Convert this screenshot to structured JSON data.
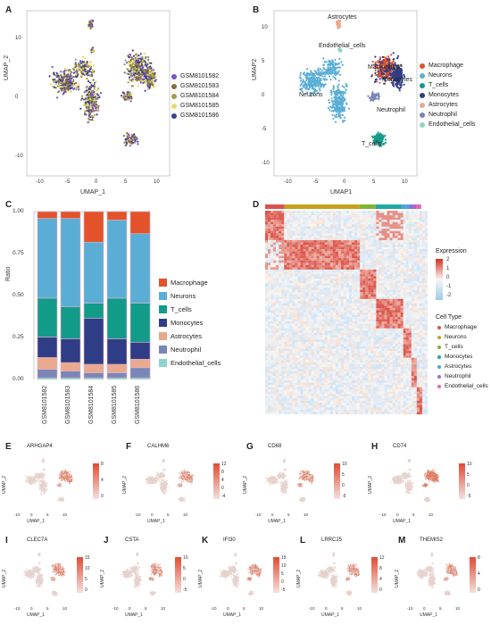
{
  "panels": {
    "A": {
      "letter": "A",
      "xlabel": "UMAP_1",
      "ylabel": "UMAP_2",
      "xticks": [
        "-10",
        "-5",
        "0",
        "5",
        "10"
      ],
      "yticks": [
        "10",
        "0",
        "-10"
      ],
      "legend": [
        {
          "label": "GSM8101582",
          "color": "#7b52c7"
        },
        {
          "label": "GSM8101583",
          "color": "#8a6b3a"
        },
        {
          "label": "GSM8101584",
          "color": "#9aa04a"
        },
        {
          "label": "GSM8101585",
          "color": "#e5dc6a"
        },
        {
          "label": "GSM8101586",
          "color": "#3a3f8f"
        }
      ]
    },
    "B": {
      "letter": "B",
      "xlabel": "UMAP1",
      "ylabel": "UMAP2",
      "xticks": [
        "-10",
        "-5",
        "0",
        "5",
        "10"
      ],
      "yticks": [
        "10",
        "5",
        "0",
        "-5",
        "-10"
      ],
      "labels": [
        "Astrocytes",
        "Endothelial_cells",
        "Macrophage",
        "Monocytes",
        "Neurons",
        "Neutrophil",
        "T_cells"
      ],
      "legend": [
        {
          "label": "Macrophage",
          "color": "#e2532b"
        },
        {
          "label": "Neurons",
          "color": "#5aaed6"
        },
        {
          "label": "T_cells",
          "color": "#139b8a"
        },
        {
          "label": "Monocytes",
          "color": "#2f3d86"
        },
        {
          "label": "Astrocytes",
          "color": "#e8a98d"
        },
        {
          "label": "Neutrophil",
          "color": "#7a86b8"
        },
        {
          "label": "Endothelial_cells",
          "color": "#8fd3c6"
        }
      ]
    },
    "C": {
      "letter": "C",
      "ylabel": "Ratio",
      "yticks": [
        "1.00",
        "0.75",
        "0.50",
        "0.25",
        "0.00"
      ],
      "legend": [
        {
          "label": "Macrophage",
          "color": "#e2532b"
        },
        {
          "label": "Neurons",
          "color": "#5aaed6"
        },
        {
          "label": "T_cells",
          "color": "#139b8a"
        },
        {
          "label": "Monocytes",
          "color": "#2f3d86"
        },
        {
          "label": "Astrocytes",
          "color": "#e8a98d"
        },
        {
          "label": "Neutrophil",
          "color": "#7a86b8"
        },
        {
          "label": "Endothelial_cells",
          "color": "#8fd3c6"
        }
      ]
    },
    "D": {
      "letter": "D",
      "expression_title": "Expression",
      "expression_ticks": [
        "2",
        "1",
        "0",
        "-1",
        "-2"
      ],
      "celltype_title": "Cell Type",
      "celltypes": [
        {
          "label": "Macrophage",
          "color": "#d9534f"
        },
        {
          "label": "Neurons",
          "color": "#c8a21a"
        },
        {
          "label": "T_cells",
          "color": "#7fb52e"
        },
        {
          "label": "Monocytes",
          "color": "#1fa9a2"
        },
        {
          "label": "Astrocytes",
          "color": "#4fa3e0"
        },
        {
          "label": "Neutrophil",
          "color": "#9b6dd6"
        },
        {
          "label": "Endothelial_cells",
          "color": "#e466b6"
        }
      ]
    }
  },
  "chart_data": [
    {
      "type": "bar",
      "title": "",
      "xlabel": "",
      "ylabel": "Ratio",
      "ylim": [
        0,
        1
      ],
      "categories": [
        "GSM8101582",
        "GSM8101583",
        "GSM8101584",
        "GSM8101585",
        "GSM8101586"
      ],
      "series": [
        {
          "name": "Endothelial_cells",
          "color": "#8fd3c6",
          "values": [
            0.02,
            0.02,
            0.02,
            0.02,
            0.02
          ]
        },
        {
          "name": "Neutrophil",
          "color": "#7a86b8",
          "values": [
            0.05,
            0.04,
            0.03,
            0.03,
            0.06
          ]
        },
        {
          "name": "Astrocytes",
          "color": "#e8a98d",
          "values": [
            0.07,
            0.05,
            0.05,
            0.05,
            0.05
          ]
        },
        {
          "name": "Monocytes",
          "color": "#2f3d86",
          "values": [
            0.12,
            0.14,
            0.27,
            0.15,
            0.1
          ]
        },
        {
          "name": "T_cells",
          "color": "#139b8a",
          "values": [
            0.23,
            0.19,
            0.09,
            0.24,
            0.23
          ]
        },
        {
          "name": "Neurons",
          "color": "#5aaed6",
          "values": [
            0.47,
            0.52,
            0.36,
            0.46,
            0.41
          ]
        },
        {
          "name": "Macrophage",
          "color": "#e2532b",
          "values": [
            0.04,
            0.04,
            0.18,
            0.05,
            0.13
          ]
        }
      ]
    }
  ],
  "feature_plots": [
    {
      "letter": "E",
      "gene": "ARHGAP4",
      "ticks": [
        "8",
        "4",
        "0"
      ]
    },
    {
      "letter": "F",
      "gene": "CALHM6",
      "ticks": [
        "12",
        "8",
        "4",
        "0",
        "-4"
      ]
    },
    {
      "letter": "G",
      "gene": "CD68",
      "ticks": [
        "10",
        "5",
        "0",
        "-5"
      ]
    },
    {
      "letter": "H",
      "gene": "CD74",
      "ticks": [
        "10",
        "5",
        "0",
        "-5"
      ]
    },
    {
      "letter": "I",
      "gene": "CLEC7A",
      "ticks": [
        "15",
        "10",
        "5",
        "0"
      ]
    },
    {
      "letter": "J",
      "gene": "CSTA",
      "ticks": [
        "10",
        "5",
        "0",
        "-5"
      ]
    },
    {
      "letter": "K",
      "gene": "IFI30",
      "ticks": [
        "15",
        "10",
        "5",
        "0",
        "-5"
      ]
    },
    {
      "letter": "L",
      "gene": "LRRC25",
      "ticks": [
        "12",
        "8",
        "4",
        "0"
      ]
    },
    {
      "letter": "M",
      "gene": "THEMIS2",
      "ticks": [
        "8",
        "4",
        "0"
      ]
    }
  ],
  "feature_axes": {
    "xlabel": "UMAP_1",
    "ylabel": "UMAP_2",
    "xticks": [
      "-10",
      "0",
      "5",
      "10"
    ]
  }
}
